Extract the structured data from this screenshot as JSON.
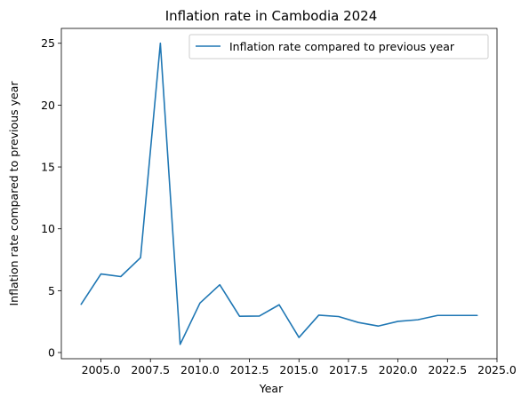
{
  "chart_data": {
    "type": "line",
    "title": "Inflation rate in Cambodia 2024",
    "xlabel": "Year",
    "ylabel": "Inflation rate compared to previous year",
    "xlim": [
      2003,
      2025
    ],
    "ylim": [
      -0.5,
      26.2
    ],
    "xticks": [
      2005.0,
      2007.5,
      2010.0,
      2012.5,
      2015.0,
      2017.5,
      2020.0,
      2022.5,
      2025.0
    ],
    "xtick_labels": [
      "2005.0",
      "2007.5",
      "2010.0",
      "2012.5",
      "2015.0",
      "2017.5",
      "2020.0",
      "2022.5",
      "2025.0"
    ],
    "yticks": [
      0,
      5,
      10,
      15,
      20,
      25
    ],
    "ytick_labels": [
      "0",
      "5",
      "10",
      "15",
      "20",
      "25"
    ],
    "grid": false,
    "legend_position": "top-right",
    "series": [
      {
        "name": "Inflation rate compared to previous year",
        "color": "#1f77b4",
        "x": [
          2004,
          2005,
          2006,
          2007,
          2008,
          2009,
          2010,
          2011,
          2012,
          2013,
          2014,
          2015,
          2016,
          2017,
          2018,
          2019,
          2020,
          2021,
          2022,
          2023,
          2024
        ],
        "values": [
          3.9,
          6.35,
          6.14,
          7.67,
          25.0,
          0.66,
          4.0,
          5.48,
          2.93,
          2.95,
          3.86,
          1.22,
          3.02,
          2.91,
          2.43,
          2.14,
          2.52,
          2.65,
          3.0,
          3.0,
          3.0
        ]
      }
    ]
  }
}
